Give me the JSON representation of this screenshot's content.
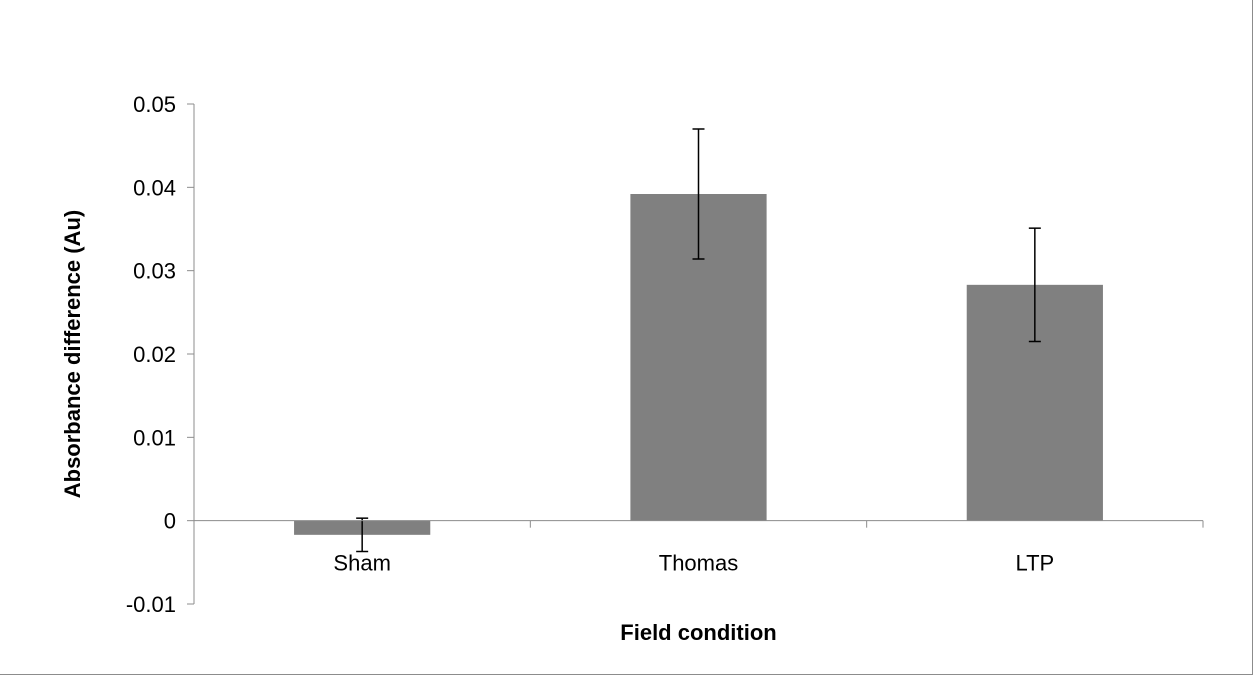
{
  "chart_data": {
    "type": "bar",
    "title": "",
    "xlabel": "Field condition",
    "ylabel": "Absorbance difference (Au)",
    "categories": [
      "Sham",
      "Thomas",
      "LTP"
    ],
    "values": [
      -0.0017,
      0.0392,
      0.0283
    ],
    "error": [
      0.002,
      0.0078,
      0.0068
    ],
    "ylim": [
      -0.01,
      0.05
    ],
    "yticks": [
      0.05,
      0.04,
      0.03,
      0.02,
      0.01,
      0,
      -0.01
    ],
    "ytick_labels": [
      "0.05",
      "0.04",
      "0.03",
      "0.02",
      "0.01",
      "0",
      "-0.01"
    ],
    "bar_color": "#808080",
    "grid": false,
    "legend": "none"
  }
}
